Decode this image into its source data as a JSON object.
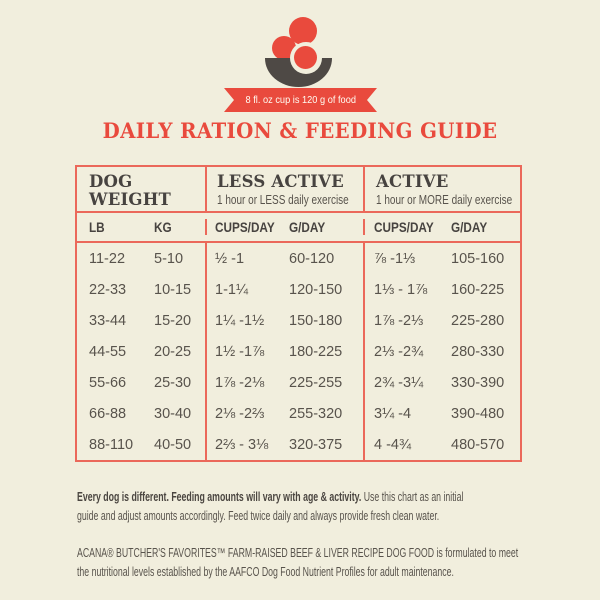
{
  "motif": {
    "ribbon_text": "8 fl. oz cup is 120 g of food"
  },
  "title": "DAILY RATION & FEEDING GUIDE",
  "table": {
    "groups": [
      {
        "title": "DOG WEIGHT",
        "subtitle": ""
      },
      {
        "title": "LESS ACTIVE",
        "subtitle": "1 hour or LESS daily exercise"
      },
      {
        "title": "ACTIVE",
        "subtitle": "1 hour or MORE daily exercise"
      }
    ],
    "columns": [
      "LB",
      "KG",
      "CUPS/DAY",
      "G/DAY",
      "CUPS/DAY",
      "G/DAY"
    ],
    "rows": [
      [
        "11-22",
        "5-10",
        "½ -1",
        "60-120",
        "⅞ -1⅓",
        "105-160"
      ],
      [
        "22-33",
        "10-15",
        "1-1¼",
        "120-150",
        "1⅓ - 1⅞",
        "160-225"
      ],
      [
        "33-44",
        "15-20",
        "1¼ -1½",
        "150-180",
        "1⅞ -2⅓",
        "225-280"
      ],
      [
        "44-55",
        "20-25",
        "1½ -1⅞",
        "180-225",
        "2⅓ -2¾",
        "280-330"
      ],
      [
        "55-66",
        "25-30",
        "1⅞ -2⅛",
        "225-255",
        "2¾ -3¼",
        "330-390"
      ],
      [
        "66-88",
        "30-40",
        "2⅛ -2⅔",
        "255-320",
        "3¼ -4",
        "390-480"
      ],
      [
        "88-110",
        "40-50",
        "2⅔ - 3⅛",
        "320-375",
        "4 -4¾",
        "480-570"
      ]
    ]
  },
  "footer": {
    "note_bold": "Every dog is different. Feeding amounts will vary with age & activity.",
    "note_rest": " Use this chart as an initial\nguide and adjust amounts accordingly. Feed twice daily and always provide fresh clean water.",
    "aafco": "ACANA® BUTCHER'S FAVORITES™ FARM-RAISED BEEF & LIVER RECIPE DOG FOOD is formulated to meet\nthe nutritional levels established by the AAFCO Dog Food Nutrient Profiles for adult maintenance."
  },
  "colors": {
    "bg": "#f1eedd",
    "red": "#e94a3d",
    "coral": "#eb685a",
    "charcoal": "#4e4945",
    "text": "#58534c",
    "ribbon_text": "#fffcf2"
  }
}
